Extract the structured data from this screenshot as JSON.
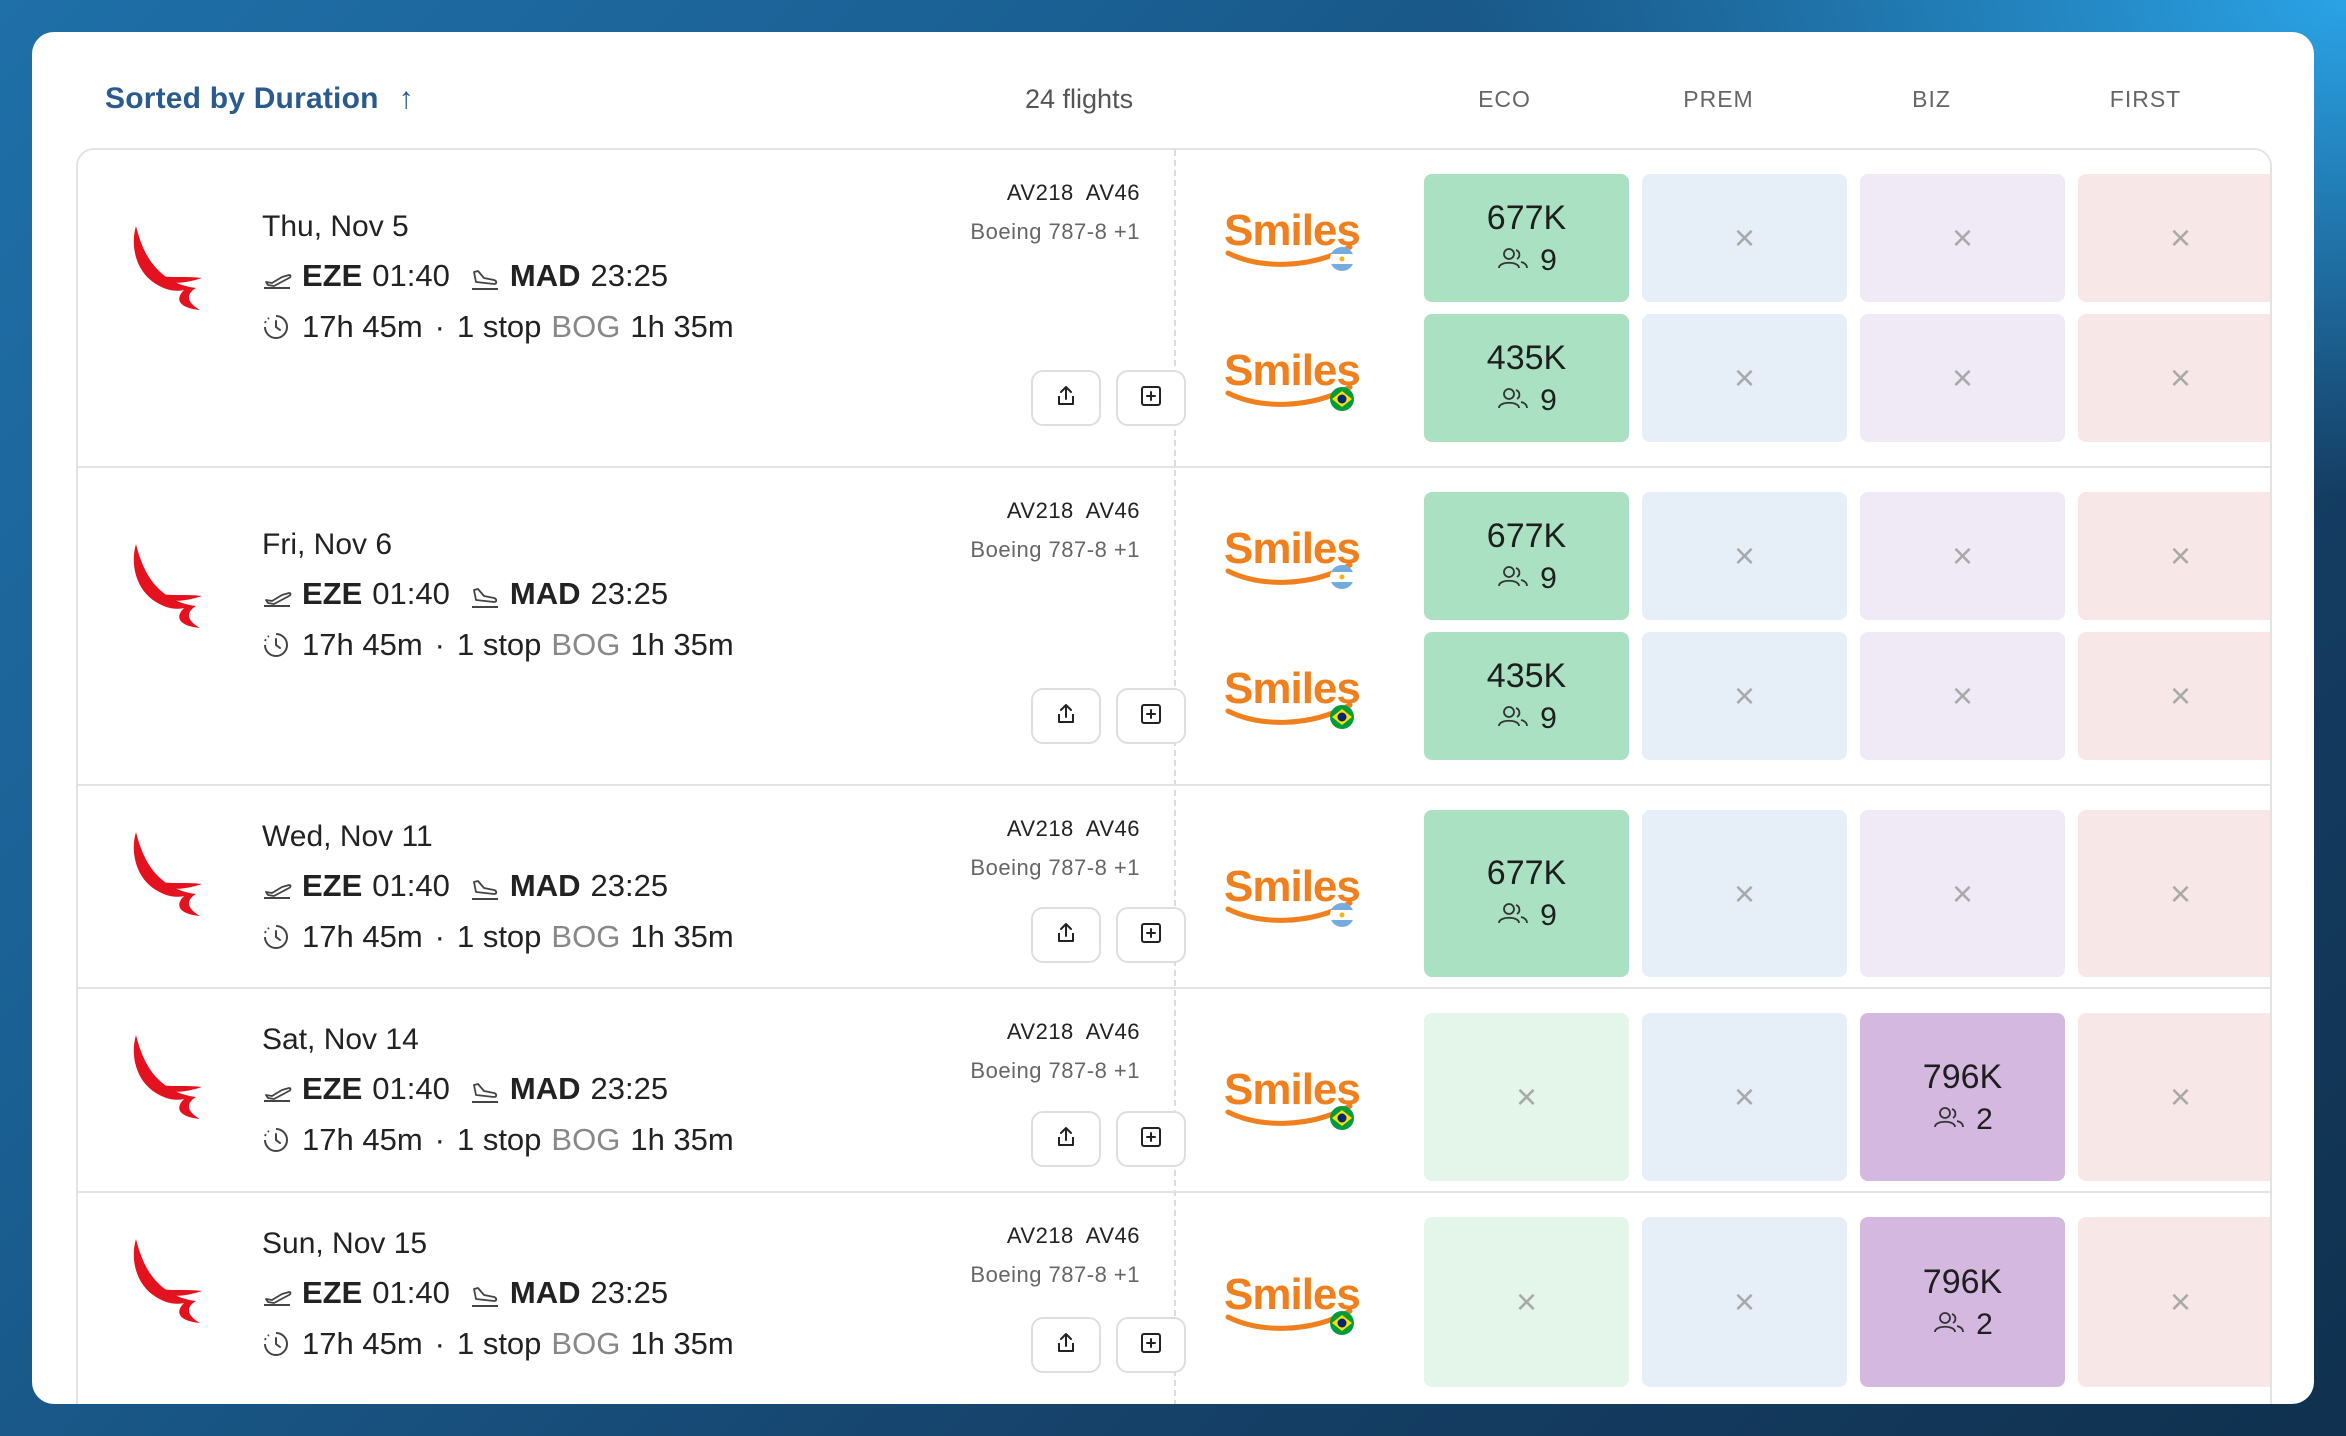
{
  "header": {
    "sort_label": "Sorted by Duration",
    "sort_arrow": "↑",
    "flight_count": "24 flights",
    "columns": [
      "ECO",
      "PREM",
      "BIZ",
      "FIRST"
    ]
  },
  "icons": {
    "airline_logo": "avianca-logo",
    "departure": "plane-takeoff-icon",
    "arrival": "plane-landing-icon",
    "duration": "clock-icon",
    "share": "share-icon",
    "add": "plus-square-icon",
    "seats": "people-icon",
    "unavailable": "close-icon"
  },
  "colors": {
    "eco_available": "#a9e1c2",
    "biz_available": "#d4b8e0",
    "smiles_orange": "#f07f1d"
  },
  "rows": [
    {
      "date": "Thu, Nov 5",
      "dep_code": "EZE",
      "dep_time": "01:40",
      "arr_code": "MAD",
      "arr_time": "23:25",
      "duration": "17h 45m",
      "dot": "·",
      "stops": "1 stop",
      "stop_code": "BOG",
      "layover": "1h 35m",
      "flights": "AV218  AV46",
      "aircraft": "Boeing 787-8 +1",
      "programs": [
        {
          "name": "Smiles",
          "flag": "Argentina",
          "eco": "677K",
          "eco_seats": "9",
          "prem": "×",
          "biz": "×",
          "first": "×"
        },
        {
          "name": "Smiles",
          "flag": "Brazil",
          "eco": "435K",
          "eco_seats": "9",
          "prem": "×",
          "biz": "×",
          "first": "×"
        }
      ]
    },
    {
      "date": "Fri, Nov 6",
      "dep_code": "EZE",
      "dep_time": "01:40",
      "arr_code": "MAD",
      "arr_time": "23:25",
      "duration": "17h 45m",
      "dot": "·",
      "stops": "1 stop",
      "stop_code": "BOG",
      "layover": "1h 35m",
      "flights": "AV218  AV46",
      "aircraft": "Boeing 787-8 +1",
      "programs": [
        {
          "name": "Smiles",
          "flag": "Argentina",
          "eco": "677K",
          "eco_seats": "9",
          "prem": "×",
          "biz": "×",
          "first": "×"
        },
        {
          "name": "Smiles",
          "flag": "Brazil",
          "eco": "435K",
          "eco_seats": "9",
          "prem": "×",
          "biz": "×",
          "first": "×"
        }
      ]
    },
    {
      "date": "Wed, Nov 11",
      "dep_code": "EZE",
      "dep_time": "01:40",
      "arr_code": "MAD",
      "arr_time": "23:25",
      "duration": "17h 45m",
      "dot": "·",
      "stops": "1 stop",
      "stop_code": "BOG",
      "layover": "1h 35m",
      "flights": "AV218  AV46",
      "aircraft": "Boeing 787-8 +1",
      "programs": [
        {
          "name": "Smiles",
          "flag": "Argentina",
          "eco": "677K",
          "eco_seats": "9",
          "prem": "×",
          "biz": "×",
          "first": "×"
        }
      ]
    },
    {
      "date": "Sat, Nov 14",
      "dep_code": "EZE",
      "dep_time": "01:40",
      "arr_code": "MAD",
      "arr_time": "23:25",
      "duration": "17h 45m",
      "dot": "·",
      "stops": "1 stop",
      "stop_code": "BOG",
      "layover": "1h 35m",
      "flights": "AV218  AV46",
      "aircraft": "Boeing 787-8 +1",
      "programs": [
        {
          "name": "Smiles",
          "flag": "Brazil",
          "eco": "×",
          "prem": "×",
          "biz": "796K",
          "biz_seats": "2",
          "first": "×"
        }
      ]
    },
    {
      "date": "Sun, Nov 15",
      "dep_code": "EZE",
      "dep_time": "01:40",
      "arr_code": "MAD",
      "arr_time": "23:25",
      "duration": "17h 45m",
      "dot": "·",
      "stops": "1 stop",
      "stop_code": "BOG",
      "layover": "1h 35m",
      "flights": "AV218  AV46",
      "aircraft": "Boeing 787-8 +1",
      "programs": [
        {
          "name": "Smiles",
          "flag": "Brazil",
          "eco": "×",
          "prem": "×",
          "biz": "796K",
          "biz_seats": "2",
          "first": "×"
        }
      ]
    }
  ]
}
